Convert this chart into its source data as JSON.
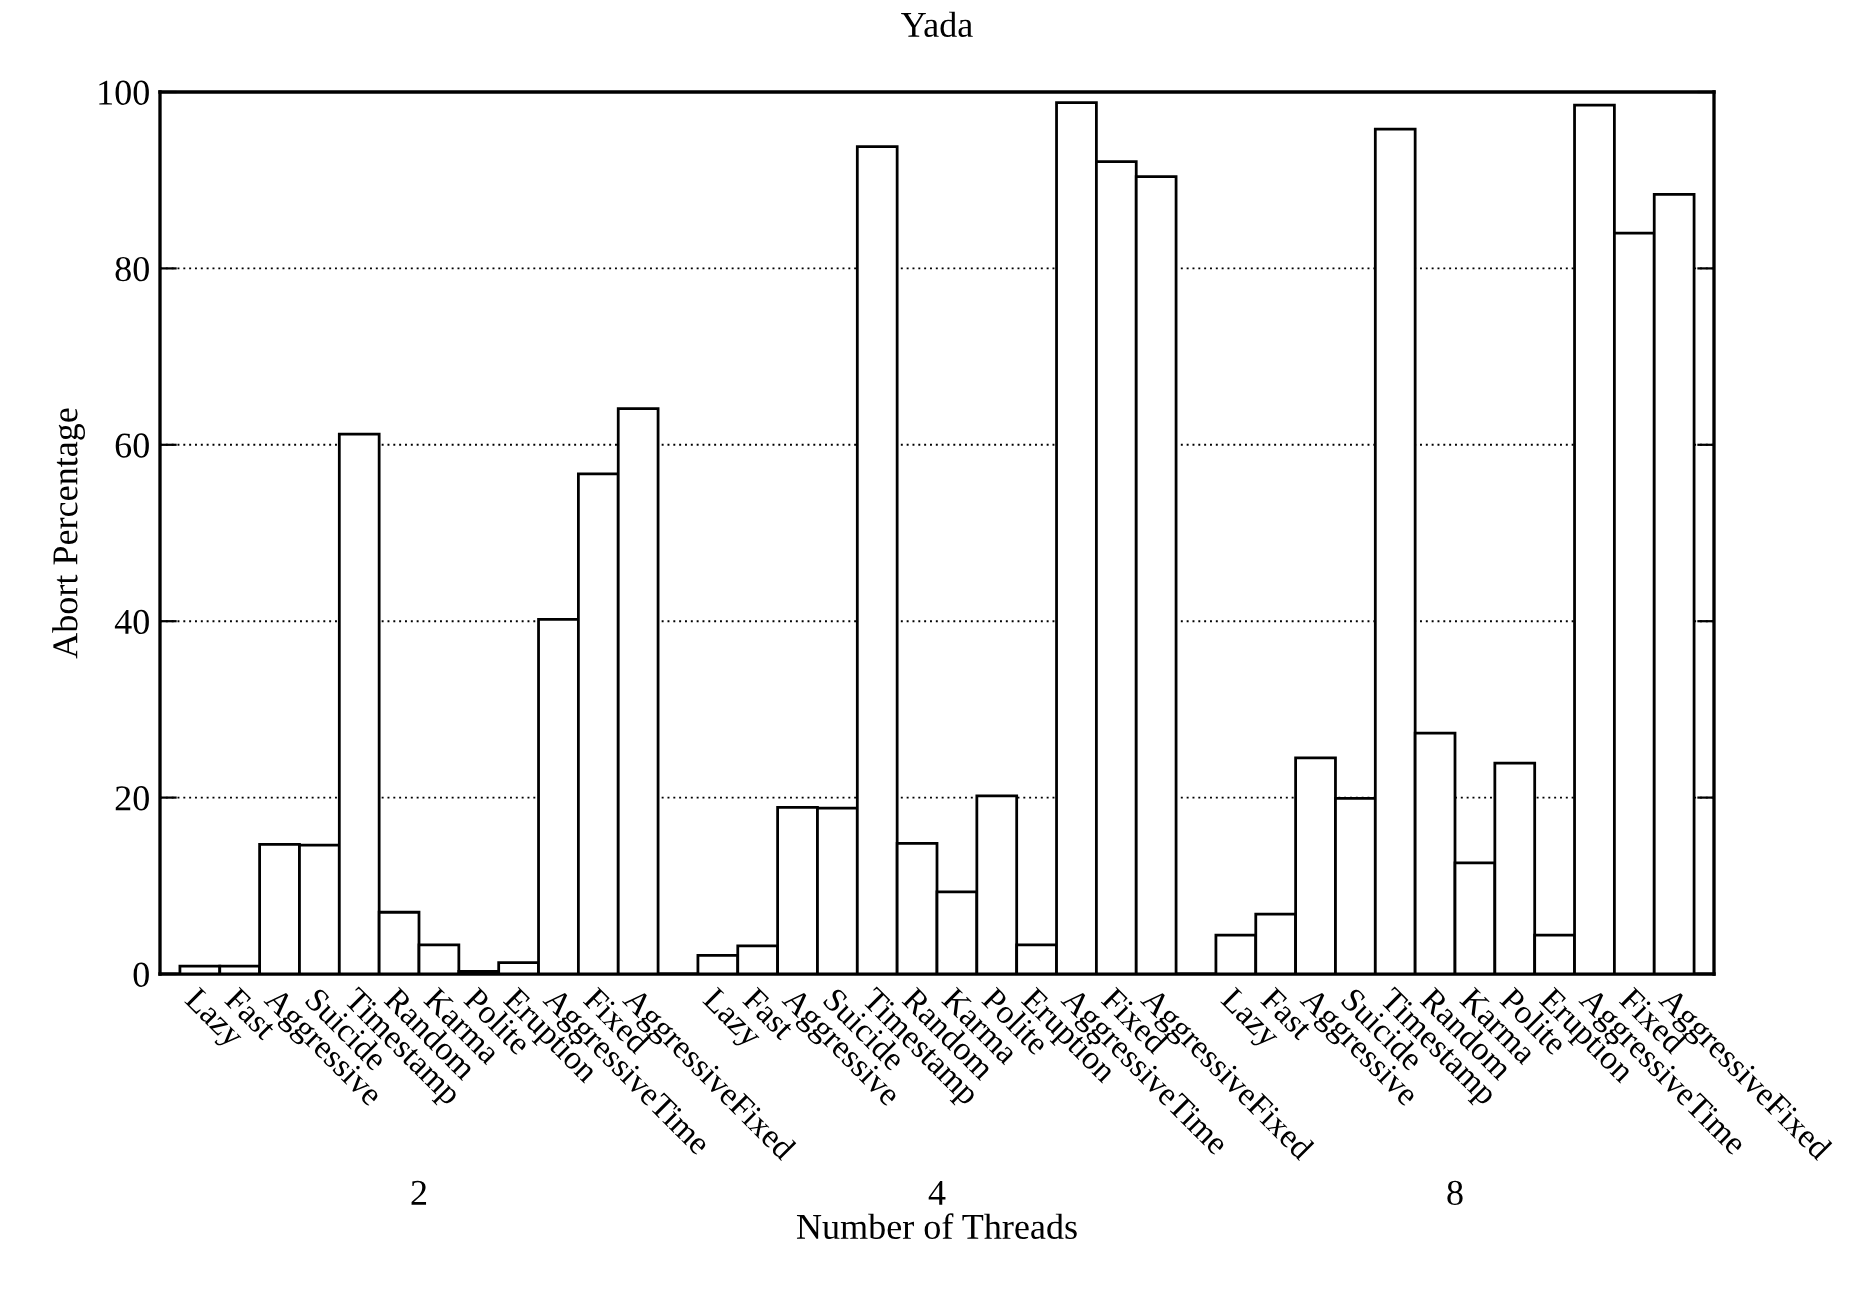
{
  "chart_data": {
    "type": "bar",
    "title": "Yada",
    "xlabel": "Number of Threads",
    "ylabel": "Abort Percentage",
    "categories": [
      "Lazy",
      "Fast",
      "Aggressive",
      "Suicide",
      "Timestamp",
      "Random",
      "Karma",
      "Polite",
      "Eruption",
      "AggressiveTime",
      "Fixed",
      "AggressiveFixed",
      null,
      "Lazy",
      "Fast",
      "Aggressive",
      "Suicide",
      "Timestamp",
      "Random",
      "Karma",
      "Polite",
      "Eruption",
      "AggressiveTime",
      "Fixed",
      "AggressiveFixed",
      null,
      "Lazy",
      "Fast",
      "Aggressive",
      "Suicide",
      "Timestamp",
      "Random",
      "Karma",
      "Polite",
      "Eruption",
      "AggressiveTime",
      "Fixed",
      "AggressiveFixed"
    ],
    "values": [
      0.9,
      0.9,
      14.7,
      14.6,
      61.2,
      7.0,
      3.3,
      0.3,
      1.3,
      40.2,
      56.7,
      64.1,
      null,
      2.1,
      3.2,
      18.9,
      18.8,
      93.8,
      14.8,
      9.3,
      20.2,
      3.3,
      98.8,
      92.1,
      90.4,
      null,
      4.4,
      6.8,
      24.5,
      19.9,
      95.8,
      27.3,
      12.6,
      23.9,
      4.4,
      98.5,
      84.0,
      88.4
    ],
    "color": "#ffffff",
    "annotations": [
      "2",
      "4",
      "8"
    ],
    "ylim": [
      0,
      100
    ],
    "yticks": [
      0,
      20,
      40,
      60,
      80,
      100
    ],
    "grid": "y"
  }
}
